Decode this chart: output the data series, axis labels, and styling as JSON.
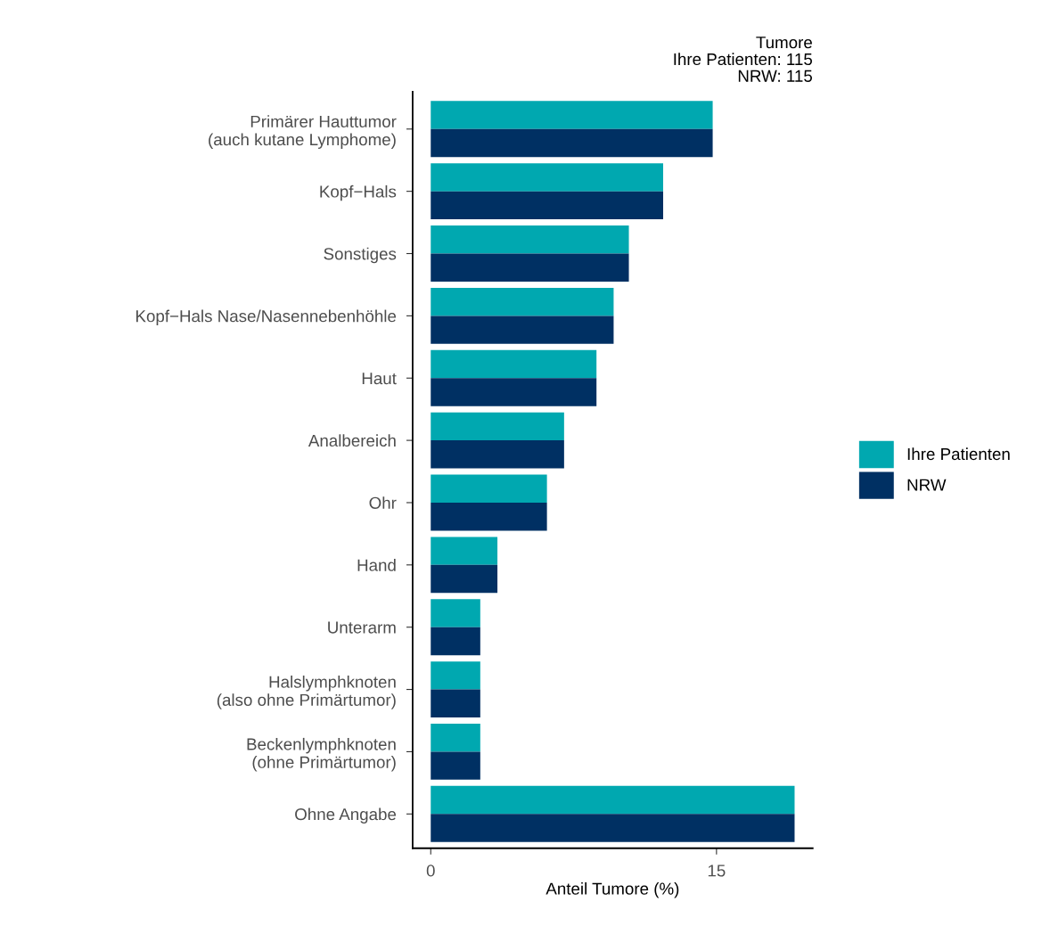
{
  "chart_data": {
    "type": "bar",
    "orientation": "horizontal",
    "title": "Tumore\nIhre Patienten: 115\nNRW: 115",
    "xlabel": "Anteil Tumore (%)",
    "categories": [
      "Primärer Hauttumor\n(auch kutane Lymphome)",
      "Kopf−Hals",
      "Sonstiges",
      "Kopf−Hals Nase/Nasennebenhöhle",
      "Haut",
      "Analbereich",
      "Ohr",
      "Hand",
      "Unterarm",
      "Halslymphknoten\n(also ohne Primärtumor)",
      "Beckenlymphknoten\n(ohne Primärtumor)",
      "Ohne Angabe"
    ],
    "series": [
      {
        "name": "Ihre Patienten",
        "color": "#00a8b0",
        "values": [
          14.8,
          12.2,
          10.4,
          9.6,
          8.7,
          7.0,
          6.1,
          3.5,
          2.6,
          2.6,
          2.6,
          19.1
        ]
      },
      {
        "name": "NRW",
        "color": "#003063",
        "values": [
          14.8,
          12.2,
          10.4,
          9.6,
          8.7,
          7.0,
          6.1,
          3.5,
          2.6,
          2.6,
          2.6,
          19.1
        ]
      }
    ],
    "xlim": [
      -0.95,
      20.05
    ],
    "xticks": [
      0,
      15
    ],
    "grid": false,
    "legend": "right"
  }
}
